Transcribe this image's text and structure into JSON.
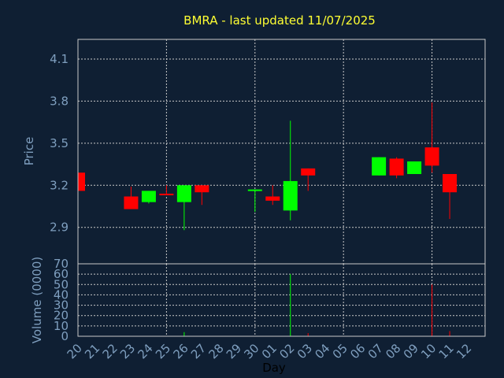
{
  "colors": {
    "background": "#0f1f33",
    "title": "#ffff33",
    "axis_text": "#7f9fbf",
    "up": "#00ff00",
    "down": "#ff0000",
    "grid": "#c8c8c8"
  },
  "chart_data": {
    "type": "candlestick",
    "title": "BMRA - last updated 11/07/2025",
    "xlabel": "Day",
    "price_panel": {
      "ylabel": "Price",
      "ylim": [
        2.64,
        4.24
      ],
      "yticks": [
        2.9,
        3.2,
        3.5,
        3.8,
        4.1
      ],
      "ytick_labels": [
        "2.9",
        "3.2",
        "3.5",
        "3.8",
        "4.1"
      ]
    },
    "volume_panel": {
      "ylabel": "Volume (0000)",
      "ylim": [
        0,
        70
      ],
      "yticks": [
        0,
        10,
        20,
        30,
        40,
        50,
        60,
        70
      ],
      "ytick_labels": [
        "0",
        "10",
        "20",
        "30",
        "40",
        "50",
        "60",
        "70"
      ]
    },
    "x_labels": [
      "20",
      "21",
      "22",
      "23",
      "24",
      "25",
      "26",
      "27",
      "28",
      "29",
      "30",
      "01",
      "02",
      "03",
      "04",
      "05",
      "06",
      "07",
      "08",
      "09",
      "10",
      "11",
      "12"
    ],
    "grid": true,
    "candles": [
      {
        "day": "20",
        "open": 3.29,
        "close": 3.16,
        "high": 3.29,
        "low": 3.16,
        "volume": 0
      },
      {
        "day": "23",
        "open": 3.12,
        "close": 3.03,
        "high": 3.19,
        "low": 3.03,
        "volume": 0
      },
      {
        "day": "24",
        "open": 3.08,
        "close": 3.16,
        "high": 3.16,
        "low": 3.07,
        "volume": 0
      },
      {
        "day": "25",
        "open": 3.14,
        "close": 3.13,
        "high": 3.2,
        "low": 3.13,
        "volume": 0
      },
      {
        "day": "26",
        "open": 3.08,
        "close": 3.2,
        "high": 3.2,
        "low": 2.88,
        "volume": 4
      },
      {
        "day": "27",
        "open": 3.2,
        "close": 3.15,
        "high": 3.2,
        "low": 3.06,
        "volume": 0
      },
      {
        "day": "30",
        "open": 3.16,
        "close": 3.17,
        "high": 3.17,
        "low": 3.01,
        "volume": 0
      },
      {
        "day": "01",
        "open": 3.12,
        "close": 3.09,
        "high": 3.2,
        "low": 3.06,
        "volume": 0
      },
      {
        "day": "02",
        "open": 3.02,
        "close": 3.23,
        "high": 3.66,
        "low": 2.95,
        "volume": 60
      },
      {
        "day": "03",
        "open": 3.32,
        "close": 3.27,
        "high": 3.32,
        "low": 3.16,
        "volume": 3
      },
      {
        "day": "07",
        "open": 3.27,
        "close": 3.4,
        "high": 3.4,
        "low": 3.27,
        "volume": 0
      },
      {
        "day": "08",
        "open": 3.39,
        "close": 3.27,
        "high": 3.4,
        "low": 3.25,
        "volume": 0
      },
      {
        "day": "09",
        "open": 3.28,
        "close": 3.37,
        "high": 3.37,
        "low": 3.28,
        "volume": 0
      },
      {
        "day": "10",
        "open": 3.47,
        "close": 3.34,
        "high": 3.79,
        "low": 3.29,
        "volume": 50
      },
      {
        "day": "11",
        "open": 3.28,
        "close": 3.15,
        "high": 3.28,
        "low": 2.96,
        "volume": 5
      }
    ]
  }
}
